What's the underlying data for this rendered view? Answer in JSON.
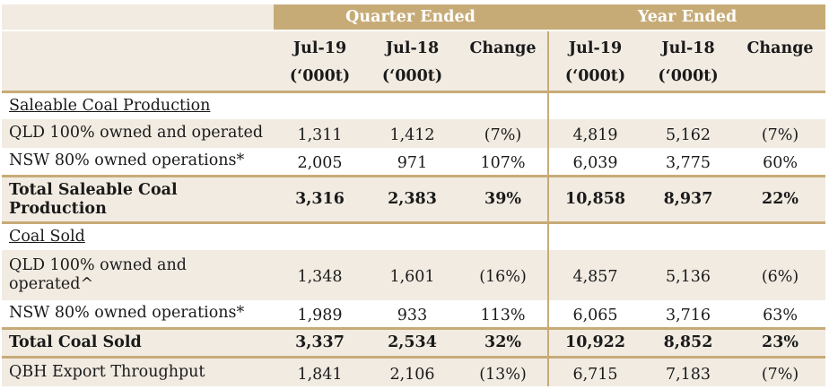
{
  "header": {
    "quarter_ended": "Quarter Ended",
    "year_ended": "Year Ended",
    "cols": [
      {
        "line1": "Jul-19",
        "line2": "(‘000t)"
      },
      {
        "line1": "Jul-18",
        "line2": "(‘000t)"
      },
      {
        "line1": "Change",
        "line2": ""
      },
      {
        "line1": "Jul-19",
        "line2": "(‘000t)"
      },
      {
        "line1": "Jul-18",
        "line2": "(‘000t)"
      },
      {
        "line1": "Change",
        "line2": ""
      }
    ]
  },
  "sections": {
    "production_title": "Saleable Coal Production",
    "sold_title": "Coal Sold"
  },
  "rows": {
    "prod_qld": {
      "label": "QLD 100% owned and operated",
      "values": [
        "1,311",
        "1,412",
        "(7%)",
        "4,819",
        "5,162",
        "(7%)"
      ]
    },
    "prod_nsw": {
      "label": "NSW  80% owned operations*",
      "values": [
        "2,005",
        "971",
        "107%",
        "6,039",
        "3,775",
        "60%"
      ]
    },
    "prod_total": {
      "label": "Total Saleable Coal Production",
      "values": [
        "3,316",
        "2,383",
        "39%",
        "10,858",
        "8,937",
        "22%"
      ]
    },
    "sold_qld": {
      "label": "QLD 100% owned and operated^",
      "values": [
        "1,348",
        "1,601",
        "(16%)",
        "4,857",
        "5,136",
        "(6%)"
      ]
    },
    "sold_nsw": {
      "label": "NSW  80% owned operations*",
      "values": [
        "1,989",
        "933",
        "113%",
        "6,065",
        "3,716",
        "63%"
      ]
    },
    "sold_total": {
      "label": "Total Coal Sold",
      "values": [
        "3,337",
        "2,534",
        "32%",
        "10,922",
        "8,852",
        "23%"
      ]
    },
    "qbh": {
      "label": "QBH Export Throughput",
      "values": [
        "1,841",
        "2,106",
        "(13%)",
        "6,715",
        "7,183",
        "(7%)"
      ]
    }
  },
  "colors": {
    "gold": "#c7ab77",
    "shade": "#f1ebe2"
  }
}
